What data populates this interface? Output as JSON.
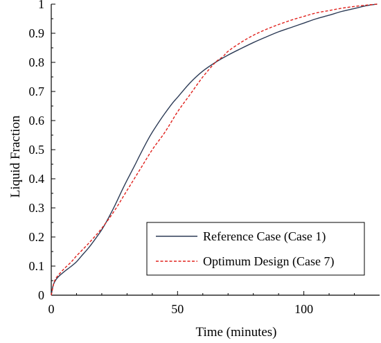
{
  "chart_data": {
    "type": "line",
    "title": "",
    "xlabel": "Time (minutes)",
    "ylabel": "Liquid Fraction",
    "xlim": [
      0,
      130
    ],
    "ylim": [
      0,
      1
    ],
    "x_ticks": [
      0,
      50,
      100
    ],
    "y_ticks": [
      0,
      0.1,
      0.2,
      0.3,
      0.4,
      0.5,
      0.6,
      0.7,
      0.8,
      0.9,
      1
    ],
    "x_tick_labels": [
      "0",
      "50",
      "100"
    ],
    "y_tick_labels": [
      "0",
      "0.1",
      "0.2",
      "0.3",
      "0.4",
      "0.5",
      "0.6",
      "0.7",
      "0.8",
      "0.9",
      "1"
    ],
    "grid": false,
    "legend_position": "bottom-right",
    "series": [
      {
        "name": "Reference Case (Case 1)",
        "color": "#2b3a55",
        "style": "solid",
        "x": [
          0,
          0.5,
          1,
          2,
          3,
          5,
          8,
          10,
          12,
          15,
          18,
          20,
          22,
          25,
          28,
          30,
          33,
          35,
          38,
          40,
          43,
          45,
          48,
          50,
          55,
          60,
          65,
          70,
          75,
          80,
          85,
          90,
          95,
          100,
          105,
          110,
          115,
          120,
          125,
          129
        ],
        "y": [
          0,
          0.025,
          0.04,
          0.055,
          0.065,
          0.08,
          0.1,
          0.115,
          0.135,
          0.165,
          0.2,
          0.225,
          0.255,
          0.305,
          0.36,
          0.395,
          0.445,
          0.48,
          0.53,
          0.56,
          0.6,
          0.625,
          0.66,
          0.68,
          0.73,
          0.77,
          0.8,
          0.825,
          0.847,
          0.868,
          0.887,
          0.905,
          0.92,
          0.935,
          0.95,
          0.962,
          0.975,
          0.985,
          0.995,
          1.0
        ]
      },
      {
        "name": "Optimum Design (Case 7)",
        "color": "#e0201b",
        "style": "dashed",
        "x": [
          0,
          1,
          2,
          5,
          8,
          10,
          15,
          20,
          25,
          30,
          35,
          40,
          45,
          50,
          55,
          60,
          65,
          68,
          70,
          75,
          80,
          85,
          90,
          95,
          100,
          105,
          110,
          115,
          120,
          125,
          129
        ],
        "y": [
          0,
          0.04,
          0.06,
          0.09,
          0.115,
          0.135,
          0.18,
          0.23,
          0.29,
          0.36,
          0.43,
          0.5,
          0.56,
          0.63,
          0.69,
          0.75,
          0.8,
          0.82,
          0.838,
          0.868,
          0.893,
          0.913,
          0.93,
          0.945,
          0.958,
          0.97,
          0.978,
          0.986,
          0.992,
          0.997,
          1.0
        ]
      }
    ]
  }
}
